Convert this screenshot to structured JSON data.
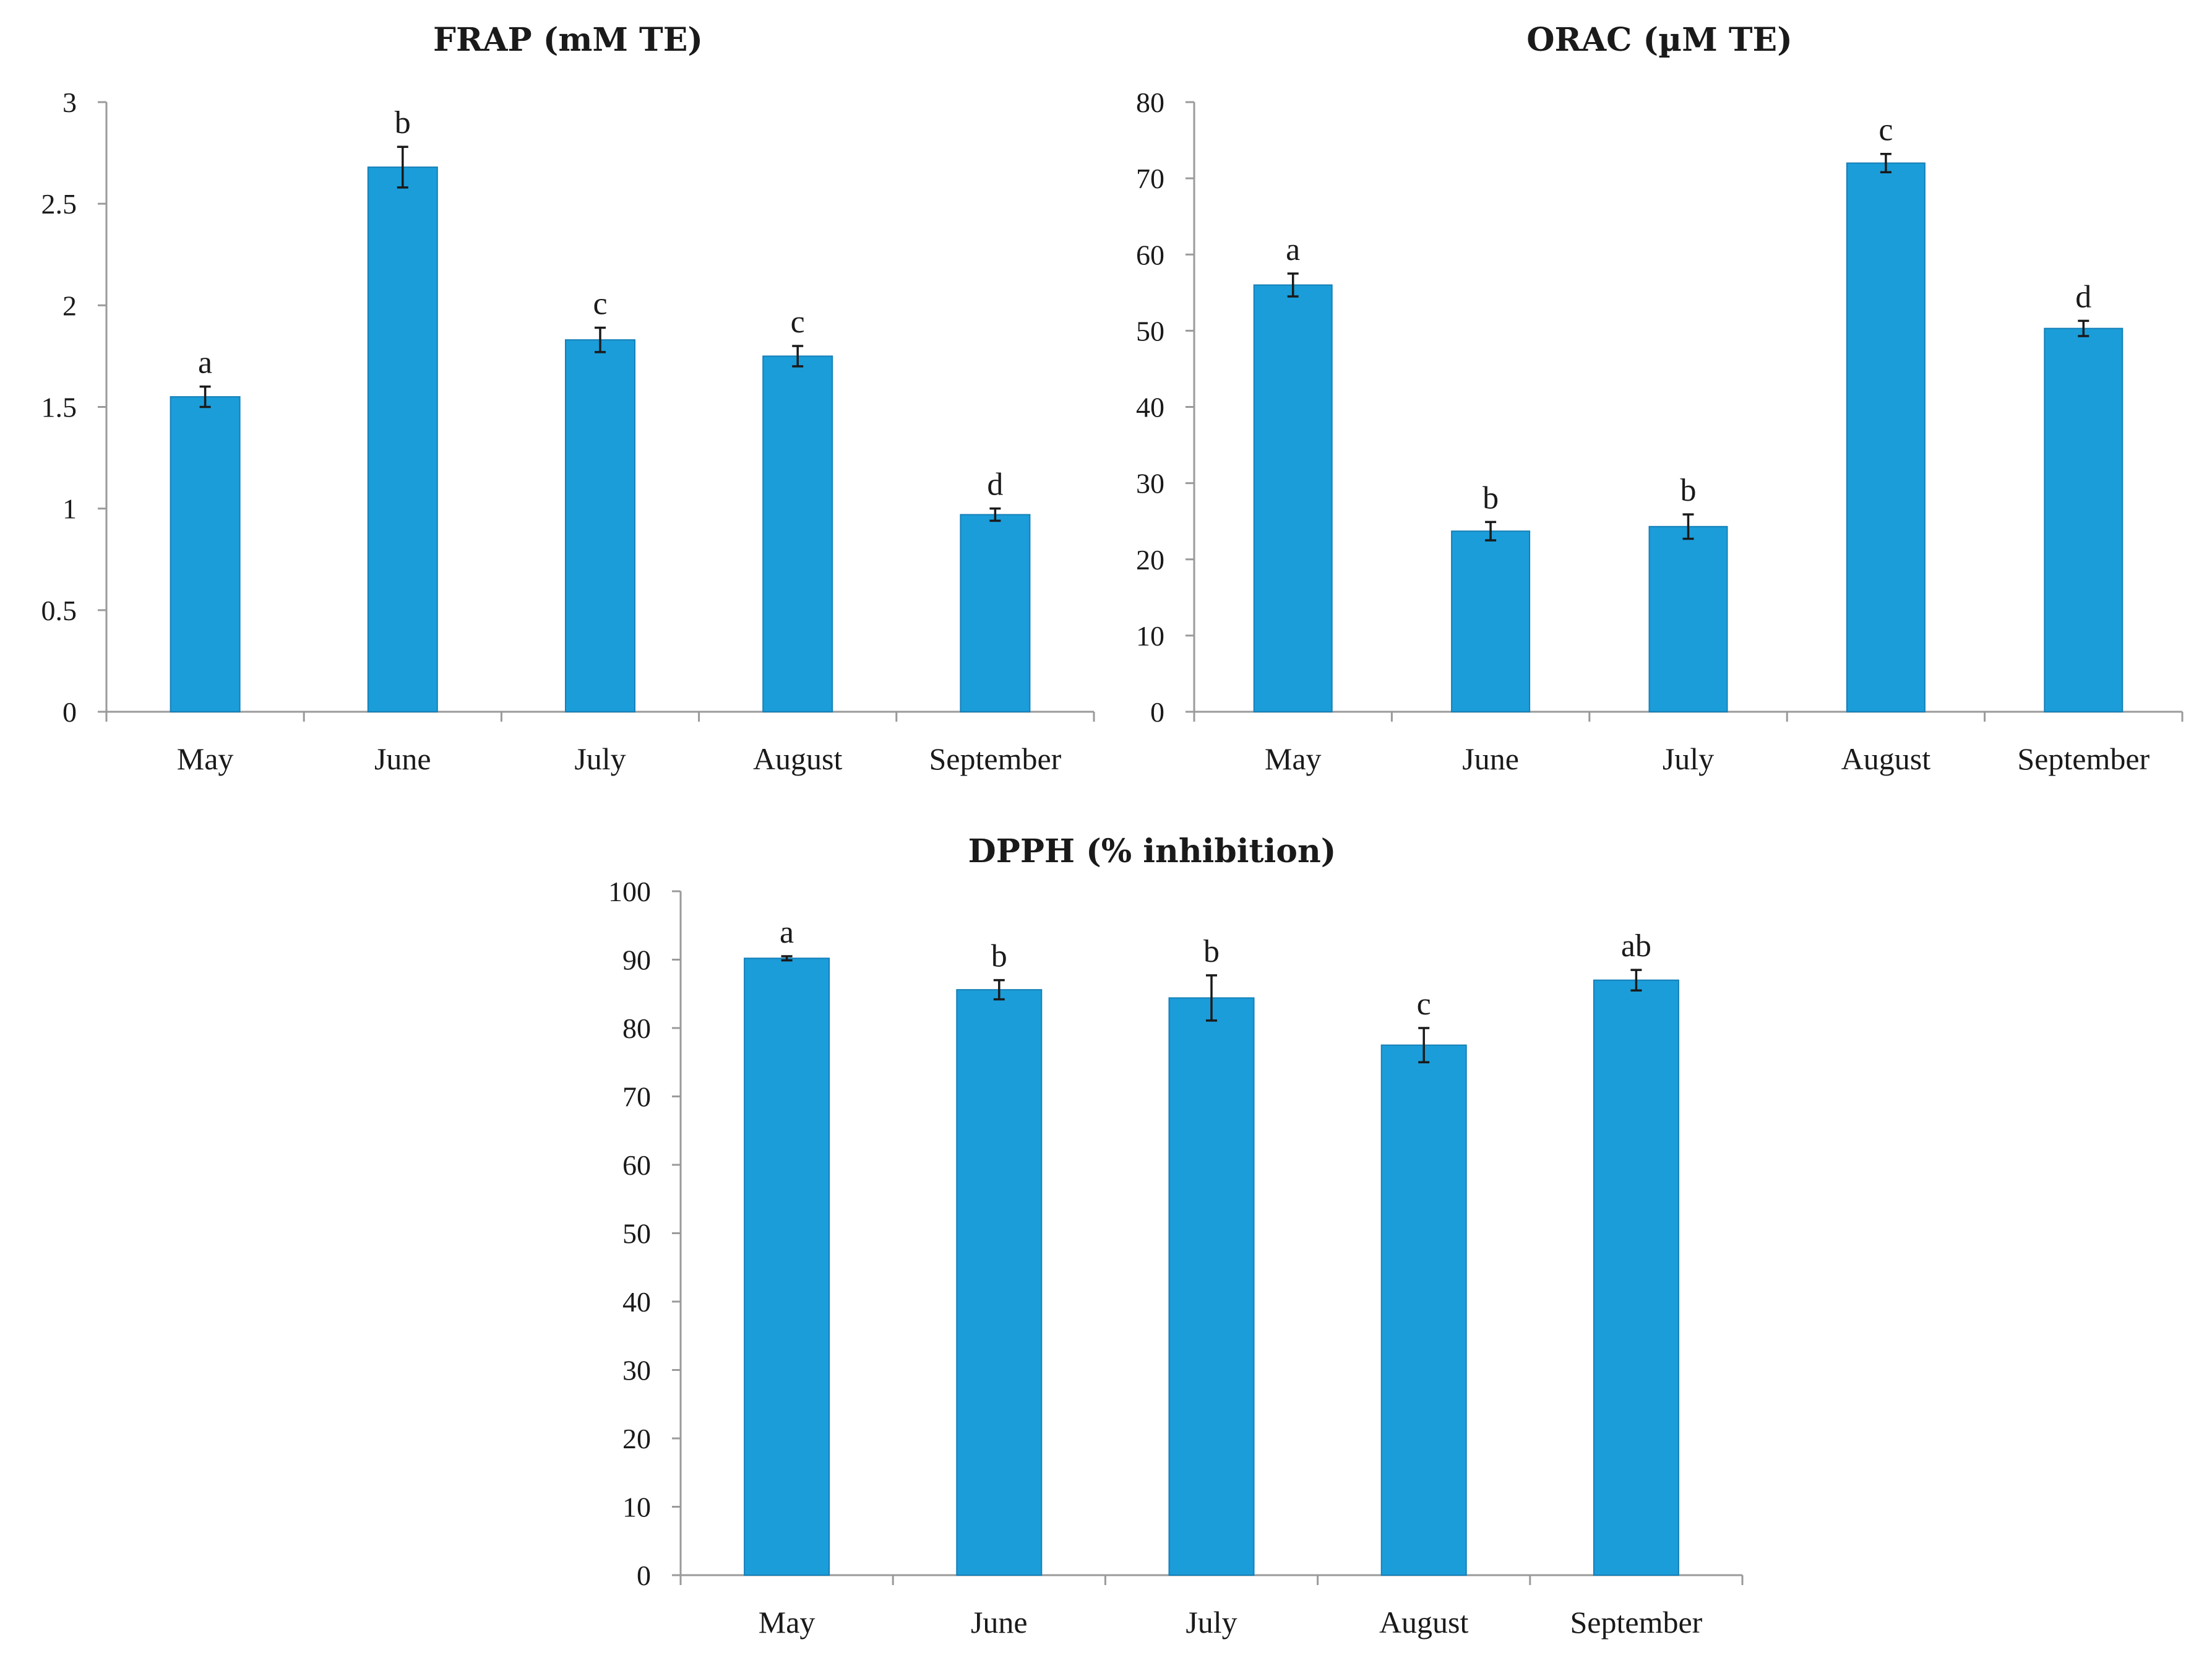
{
  "chart_data": [
    {
      "type": "bar",
      "title": "FRAP (mM TE)",
      "categories": [
        "May",
        "June",
        "July",
        "August",
        "September"
      ],
      "values": [
        1.55,
        2.68,
        1.83,
        1.75,
        0.97
      ],
      "errors": [
        0.05,
        0.1,
        0.06,
        0.05,
        0.03
      ],
      "significance": [
        "a",
        "b",
        "c",
        "c",
        "d"
      ],
      "ylim": [
        0,
        3
      ],
      "yticks": [
        0,
        0.5,
        1,
        1.5,
        2,
        2.5,
        3
      ],
      "ytick_labels": [
        "0",
        "0.5",
        "1",
        "1.5",
        "2",
        "2.5",
        "3"
      ],
      "xlabel": "",
      "ylabel": "",
      "color": "#1b9dd9"
    },
    {
      "type": "bar",
      "title": "ORAC (µM TE)",
      "categories": [
        "May",
        "June",
        "July",
        "August",
        "September"
      ],
      "values": [
        56,
        23.7,
        24.3,
        72,
        50.3
      ],
      "errors": [
        1.5,
        1.2,
        1.6,
        1.2,
        1.0
      ],
      "significance": [
        "a",
        "b",
        "b",
        "c",
        "d"
      ],
      "ylim": [
        0,
        80
      ],
      "yticks": [
        0,
        10,
        20,
        30,
        40,
        50,
        60,
        70,
        80
      ],
      "ytick_labels": [
        "0",
        "10",
        "20",
        "30",
        "40",
        "50",
        "60",
        "70",
        "80"
      ],
      "xlabel": "",
      "ylabel": "",
      "color": "#1b9dd9"
    },
    {
      "type": "bar",
      "title": "DPPH (% inhibition)",
      "categories": [
        "May",
        "June",
        "July",
        "August",
        "September"
      ],
      "values": [
        90.2,
        85.6,
        84.4,
        77.5,
        87
      ],
      "errors": [
        0.3,
        1.4,
        3.3,
        2.5,
        1.5
      ],
      "significance": [
        "a",
        "b",
        "b",
        "c",
        "ab"
      ],
      "ylim": [
        0,
        100
      ],
      "yticks": [
        0,
        10,
        20,
        30,
        40,
        50,
        60,
        70,
        80,
        90,
        100
      ],
      "ytick_labels": [
        "0",
        "10",
        "20",
        "30",
        "40",
        "50",
        "60",
        "70",
        "80",
        "90",
        "100"
      ],
      "xlabel": "",
      "ylabel": "",
      "color": "#1b9dd9"
    }
  ]
}
